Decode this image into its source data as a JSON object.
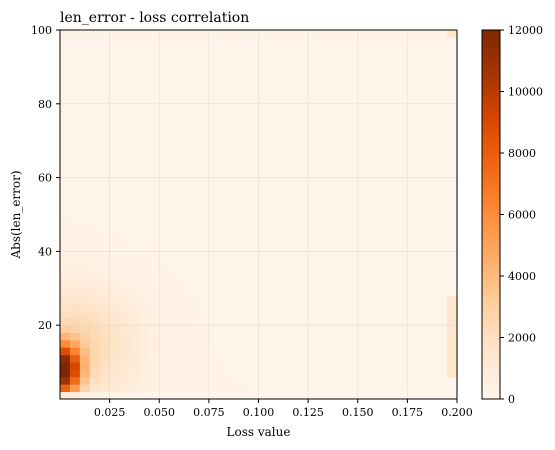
{
  "chart_data": {
    "type": "heatmap",
    "title": "len_error - loss correlation",
    "xlabel": "Loss value",
    "ylabel": "Abs(len_error)",
    "xlim": [
      0.0,
      0.2
    ],
    "ylim": [
      0,
      100
    ],
    "xticks": [
      "0.025",
      "0.050",
      "0.075",
      "0.100",
      "0.125",
      "0.150",
      "0.175",
      "0.200"
    ],
    "yticks": [
      "20",
      "40",
      "60",
      "80",
      "100"
    ],
    "grid": true,
    "colormap": "Oranges",
    "colorbar": {
      "min": 0,
      "max": 12000,
      "ticks": [
        "0",
        "2000",
        "4000",
        "6000",
        "8000",
        "10000",
        "12000"
      ]
    },
    "bins": {
      "x": 40,
      "y": 50
    },
    "highlights": [
      {
        "region": "low loss, low len_error",
        "loss": [
          0.0,
          0.02
        ],
        "abs_len_error": [
          2,
          22
        ],
        "peak_count": 12000
      },
      {
        "region": "clipped loss edge",
        "loss": 0.2,
        "abs_len_error": [
          5,
          25
        ],
        "count_approx": 1500
      },
      {
        "region": "clipped len_error edge",
        "loss": 0.2,
        "abs_len_error": 100,
        "count_approx": 1200
      }
    ]
  },
  "colors": {
    "cmap_low": "#fff5eb",
    "cmap_high": "#7f2704",
    "grid": "#d9d9d9",
    "axis": "#000000"
  }
}
